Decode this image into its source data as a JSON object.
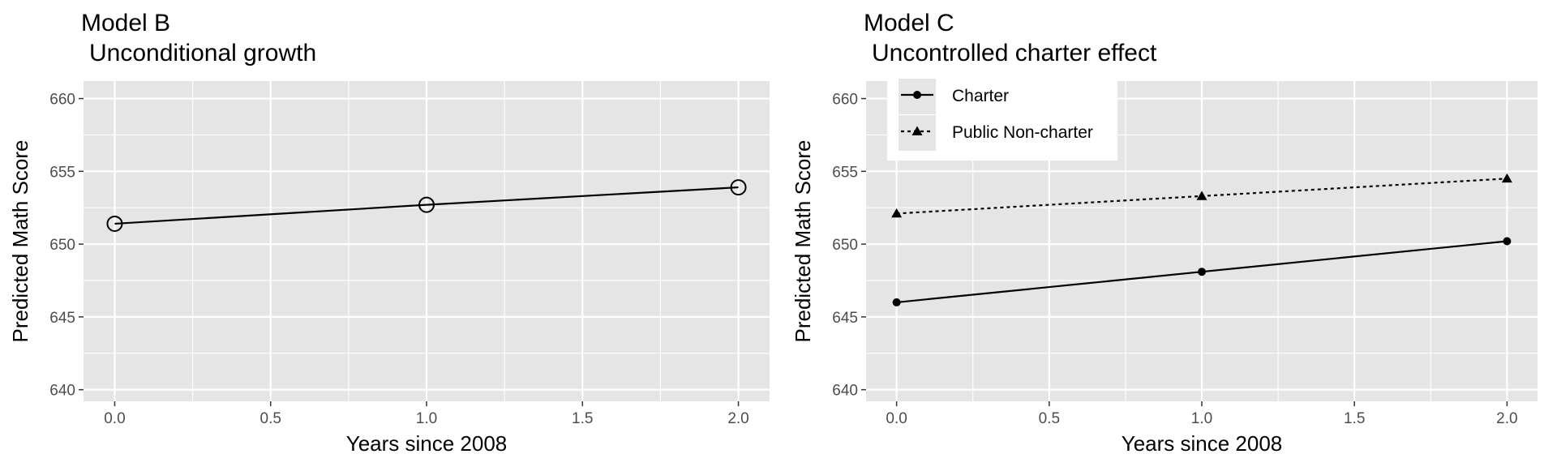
{
  "chart_data": [
    {
      "type": "line",
      "title": "Model B",
      "subtitle": "Unconditional growth",
      "xlabel": "Years since 2008",
      "ylabel": "Predicted Math Score",
      "xlim": [
        -0.1,
        2.1
      ],
      "ylim": [
        639.2,
        661.2
      ],
      "x_ticks": [
        0.0,
        0.5,
        1.0,
        1.5,
        2.0
      ],
      "x_tick_labels": [
        "0.0",
        "0.5",
        "1.0",
        "1.5",
        "2.0"
      ],
      "y_ticks": [
        640,
        645,
        650,
        655,
        660
      ],
      "y_tick_labels": [
        "640",
        "645",
        "650",
        "655",
        "660"
      ],
      "grid": true,
      "background": "#e5e5e5",
      "legend": null,
      "series": [
        {
          "x": [
            0,
            1,
            2
          ],
          "values": [
            651.4,
            652.7,
            653.9
          ],
          "marker": "open-circle",
          "line": "solid",
          "color": "#000000"
        }
      ]
    },
    {
      "type": "line",
      "title": "Model C",
      "subtitle": "Uncontrolled charter effect",
      "xlabel": "Years since 2008",
      "ylabel": "Predicted Math Score",
      "xlim": [
        -0.1,
        2.1
      ],
      "ylim": [
        639.2,
        661.2
      ],
      "x_ticks": [
        0.0,
        0.5,
        1.0,
        1.5,
        2.0
      ],
      "x_tick_labels": [
        "0.0",
        "0.5",
        "1.0",
        "1.5",
        "2.0"
      ],
      "y_ticks": [
        640,
        645,
        650,
        655,
        660
      ],
      "y_tick_labels": [
        "640",
        "645",
        "650",
        "655",
        "660"
      ],
      "grid": true,
      "background": "#e5e5e5",
      "legend": "top-left",
      "series": [
        {
          "name": "Charter",
          "x": [
            0,
            1,
            2
          ],
          "values": [
            646.0,
            648.1,
            650.2
          ],
          "marker": "filled-circle",
          "line": "solid",
          "color": "#000000"
        },
        {
          "name": "Public Non-charter",
          "x": [
            0,
            1,
            2
          ],
          "values": [
            652.1,
            653.3,
            654.5
          ],
          "marker": "filled-triangle",
          "line": "dotted",
          "color": "#000000"
        }
      ]
    }
  ]
}
